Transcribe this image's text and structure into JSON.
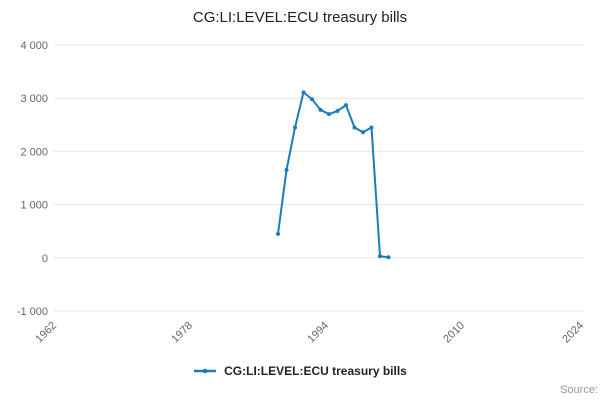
{
  "header": {
    "title": "CG:LI:LEVEL:ECU treasury bills"
  },
  "legend": {
    "label": "CG:LI:LEVEL:ECU treasury bills"
  },
  "footer": {
    "source_label": "Source:"
  },
  "colors": {
    "line": "#1a7cba",
    "grid": "#e6e6e6",
    "tick_text": "#666666",
    "title_text": "#222222",
    "source_text": "#999999"
  },
  "chart_data": {
    "type": "line",
    "title": "CG:LI:LEVEL:ECU treasury bills",
    "series_name": "CG:LI:LEVEL:ECU treasury bills",
    "x": [
      1988,
      1989,
      1990,
      1991,
      1992,
      1993,
      1994,
      1995,
      1996,
      1997,
      1998,
      1999,
      2000,
      2001
    ],
    "values": [
      450,
      1650,
      2450,
      3110,
      2980,
      2780,
      2700,
      2760,
      2870,
      2450,
      2360,
      2450,
      30,
      10
    ],
    "x_ticks": [
      1962,
      1978,
      1994,
      2010,
      2024
    ],
    "y_ticks": [
      -1000,
      0,
      1000,
      2000,
      3000,
      4000
    ],
    "xlim": [
      1962,
      2024
    ],
    "ylim": [
      -1000,
      4000
    ],
    "grid": "horizontal",
    "markers": true,
    "legend_position": "bottom"
  }
}
